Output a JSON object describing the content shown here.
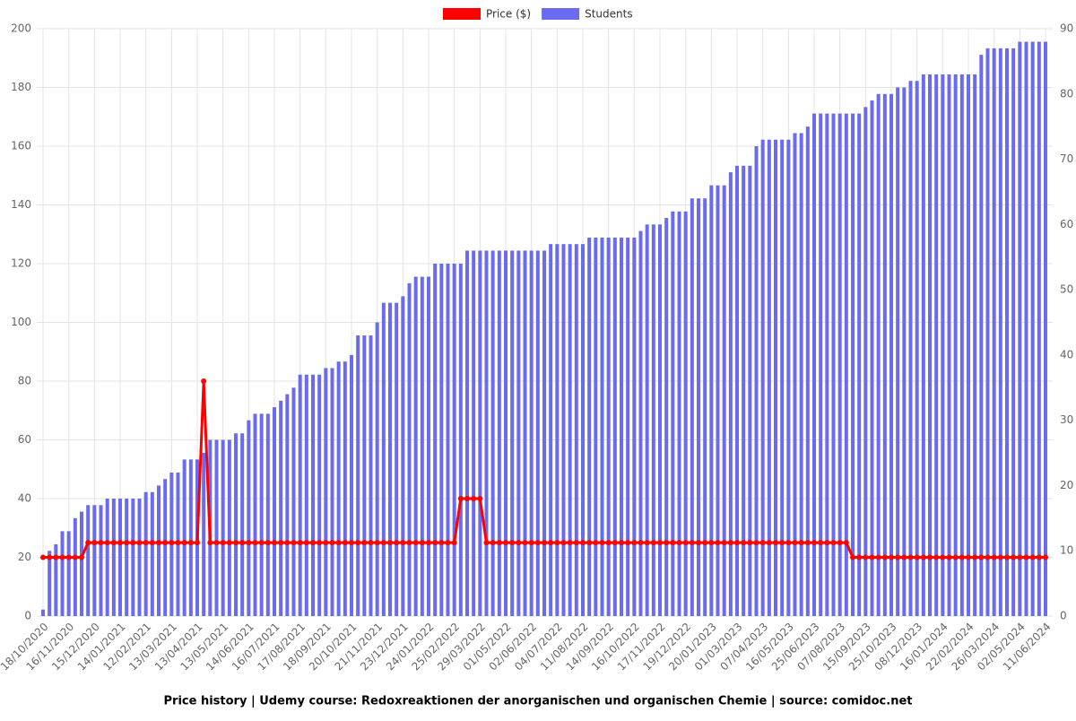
{
  "chart_data": {
    "type": "bar-line",
    "title": "Price history | Udemy course: Redoxreaktionen der anorganischen und organischen Chemie | source: comidoc.net",
    "categories": [
      "18/10/2020",
      null,
      null,
      null,
      "16/11/2020",
      null,
      null,
      null,
      "15/12/2020",
      null,
      null,
      null,
      "14/01/2021",
      null,
      null,
      null,
      "12/02/2021",
      null,
      null,
      null,
      "13/03/2021",
      null,
      null,
      null,
      "13/04/2021",
      null,
      null,
      null,
      "13/05/2021",
      null,
      null,
      null,
      "14/06/2021",
      null,
      null,
      null,
      "16/07/2021",
      null,
      null,
      null,
      "17/08/2021",
      null,
      null,
      null,
      "18/09/2021",
      null,
      null,
      null,
      "20/10/2021",
      null,
      null,
      null,
      "21/11/2021",
      null,
      null,
      null,
      "23/12/2021",
      null,
      null,
      null,
      "24/01/2022",
      null,
      null,
      null,
      "25/02/2022",
      null,
      null,
      null,
      "29/03/2022",
      null,
      null,
      null,
      "01/05/2022",
      null,
      null,
      null,
      "02/06/2022",
      null,
      null,
      null,
      "04/07/2022",
      null,
      null,
      null,
      "11/08/2022",
      null,
      null,
      null,
      "14/09/2022",
      null,
      null,
      null,
      "16/10/2022",
      null,
      null,
      null,
      "17/11/2022",
      null,
      null,
      null,
      "19/12/2022",
      null,
      null,
      null,
      "20/01/2023",
      null,
      null,
      null,
      "01/03/2023",
      null,
      null,
      null,
      "07/04/2023",
      null,
      null,
      null,
      "16/05/2023",
      null,
      null,
      null,
      "25/06/2023",
      null,
      null,
      null,
      "07/08/2023",
      null,
      null,
      null,
      "15/09/2023",
      null,
      null,
      null,
      "25/10/2023",
      null,
      null,
      null,
      "08/12/2023",
      null,
      null,
      null,
      "16/01/2024",
      null,
      null,
      null,
      "22/02/2024",
      null,
      null,
      null,
      "26/03/2024",
      null,
      null,
      null,
      "02/05/2024",
      null,
      null,
      null,
      "11/06/2024"
    ],
    "series": [
      {
        "name": "Price ($)",
        "color": "#ff0000",
        "kind": "line",
        "values": [
          20,
          20,
          20,
          20,
          20,
          20,
          20,
          25,
          25,
          25,
          25,
          25,
          25,
          25,
          25,
          25,
          25,
          25,
          25,
          25,
          25,
          25,
          25,
          25,
          25,
          80,
          25,
          25,
          25,
          25,
          25,
          25,
          25,
          25,
          25,
          25,
          25,
          25,
          25,
          25,
          25,
          25,
          25,
          25,
          25,
          25,
          25,
          25,
          25,
          25,
          25,
          25,
          25,
          25,
          25,
          25,
          25,
          25,
          25,
          25,
          25,
          25,
          25,
          25,
          25,
          40,
          40,
          40,
          40,
          25,
          25,
          25,
          25,
          25,
          25,
          25,
          25,
          25,
          25,
          25,
          25,
          25,
          25,
          25,
          25,
          25,
          25,
          25,
          25,
          25,
          25,
          25,
          25,
          25,
          25,
          25,
          25,
          25,
          25,
          25,
          25,
          25,
          25,
          25,
          25,
          25,
          25,
          25,
          25,
          25,
          25,
          25,
          25,
          25,
          25,
          25,
          25,
          25,
          25,
          25,
          25,
          25,
          25,
          25,
          25,
          25,
          20,
          20,
          20,
          20,
          20,
          20,
          20,
          20,
          20,
          20,
          20,
          20,
          20,
          20,
          20,
          20,
          20,
          20,
          20,
          20,
          20,
          20,
          20,
          20,
          20,
          20,
          20,
          20,
          20,
          20,
          20
        ]
      },
      {
        "name": "Students",
        "color": "#6b6bef",
        "kind": "bar",
        "axis": "y2",
        "values": [
          1,
          10,
          11,
          13,
          13,
          15,
          16,
          17,
          17,
          17,
          18,
          18,
          18,
          18,
          18,
          18,
          19,
          19,
          20,
          21,
          22,
          22,
          24,
          24,
          24,
          25,
          27,
          27,
          27,
          27,
          28,
          28,
          30,
          31,
          31,
          31,
          32,
          33,
          34,
          35,
          37,
          37,
          37,
          37,
          38,
          38,
          39,
          39,
          40,
          43,
          43,
          43,
          45,
          48,
          48,
          48,
          49,
          51,
          52,
          52,
          52,
          54,
          54,
          54,
          54,
          54,
          56,
          56,
          56,
          56,
          56,
          56,
          56,
          56,
          56,
          56,
          56,
          56,
          56,
          57,
          57,
          57,
          57,
          57,
          57,
          58,
          58,
          58,
          58,
          58,
          58,
          58,
          58,
          59,
          60,
          60,
          60,
          61,
          62,
          62,
          62,
          64,
          64,
          64,
          66,
          66,
          66,
          68,
          69,
          69,
          69,
          72,
          73,
          73,
          73,
          73,
          73,
          74,
          74,
          75,
          77,
          77,
          77,
          77,
          77,
          77,
          77,
          77,
          78,
          79,
          80,
          80,
          80,
          81,
          81,
          82,
          82,
          83,
          83,
          83,
          83,
          83,
          83,
          83,
          83,
          83,
          86,
          87,
          87,
          87,
          87,
          87,
          88,
          88,
          88,
          88,
          88
        ]
      }
    ],
    "ylim": [
      0,
      200
    ],
    "yticks": [
      0,
      20,
      40,
      60,
      80,
      100,
      120,
      140,
      160,
      180,
      200
    ],
    "y2lim": [
      0,
      90
    ],
    "y2ticks": [
      0,
      10,
      20,
      30,
      40,
      50,
      60,
      70,
      80,
      90
    ],
    "grid": true,
    "legend": "top"
  }
}
